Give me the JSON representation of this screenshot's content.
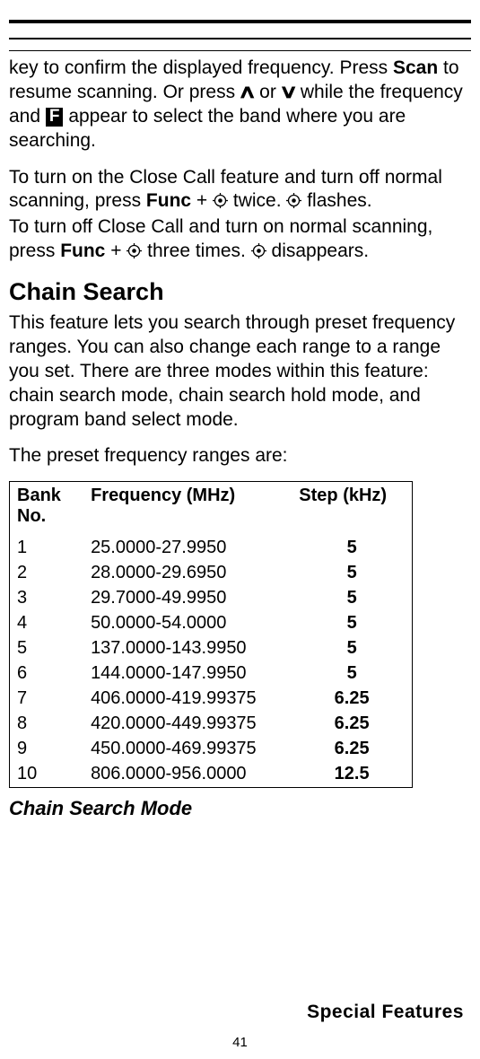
{
  "para1": {
    "pre": "key to confirm the displayed frequency. Press ",
    "scan": "Scan",
    "mid1": " to resume scanning. Or press ",
    "or": " or ",
    "mid2": "  while the frequency and ",
    "fbadge": "F",
    "tail": " appear to select the band where you are searching."
  },
  "para2": {
    "l1a": "To turn on the Close Call feature and turn off normal scanning, press ",
    "func": "Func",
    "plus": " + ",
    "twice": " twice. ",
    "flashes": " flashes.",
    "l2a": "To turn off Close Call and turn on normal scanning, press ",
    "three": " three times. ",
    "disappears": " disappears."
  },
  "section_title": "Chain Search",
  "para3": "This feature lets you search through preset frequency ranges. You can also change each range to a range you set. There are three modes within this feature: chain search mode, chain search hold mode, and program band select mode.",
  "para4": "The preset frequency ranges are:",
  "table": {
    "headers": {
      "bank": "Bank No.",
      "freq": "Frequency (MHz)",
      "step": "Step (kHz)"
    },
    "col_widths": {
      "bank": "80px",
      "freq": "225px",
      "step": "130px"
    },
    "rows": [
      {
        "bank": "1",
        "freq": "25.0000-27.9950",
        "step": "5"
      },
      {
        "bank": "2",
        "freq": "28.0000-29.6950",
        "step": "5"
      },
      {
        "bank": "3",
        "freq": "29.7000-49.9950",
        "step": "5"
      },
      {
        "bank": "4",
        "freq": "50.0000-54.0000",
        "step": "5"
      },
      {
        "bank": "5",
        "freq": "137.0000-143.9950",
        "step": "5"
      },
      {
        "bank": "6",
        "freq": "144.0000-147.9950",
        "step": "5"
      },
      {
        "bank": "7",
        "freq": "406.0000-419.99375",
        "step": "6.25"
      },
      {
        "bank": "8",
        "freq": "420.0000-449.99375",
        "step": "6.25"
      },
      {
        "bank": "9",
        "freq": "450.0000-469.99375",
        "step": "6.25"
      },
      {
        "bank": "10",
        "freq": "806.0000-956.0000",
        "step": "12.5"
      }
    ]
  },
  "subsection_title": "Chain Search Mode",
  "footer": "Special Features",
  "page_number": "41",
  "icons": {
    "target_svg_size": 17
  }
}
